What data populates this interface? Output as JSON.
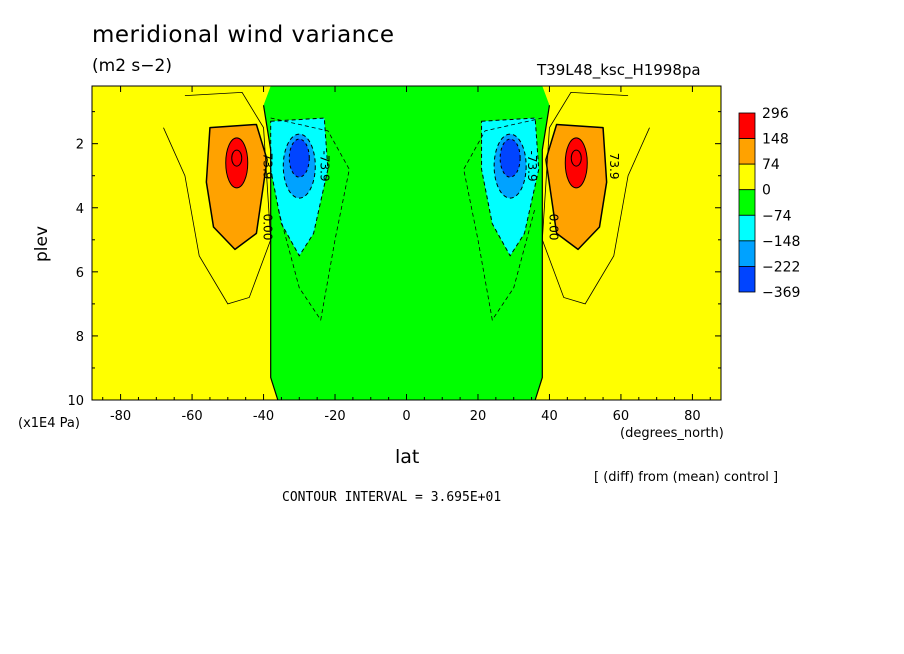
{
  "header": {
    "title": "meridional wind variance",
    "units": "(m2 s−2)",
    "run_name": "T39L48_ksc_H1998pa"
  },
  "footer": {
    "diff_note": "[ (diff) from (mean) control ]",
    "contour_interval": "CONTOUR INTERVAL = 3.695E+01"
  },
  "chart_data": {
    "type": "heatmap",
    "title": "meridional wind variance",
    "subtitle": "(m2 s−2)",
    "xlabel": "lat",
    "xunit": "(degrees_north)",
    "ylabel": "plev",
    "yunit": "(x1E4 Pa)",
    "xlim": [
      -88,
      88
    ],
    "ylim": [
      10,
      0.2
    ],
    "y_inverted": true,
    "x_ticks": [
      -80,
      -60,
      -40,
      -20,
      0,
      20,
      40,
      60,
      80
    ],
    "y_ticks": [
      2,
      4,
      6,
      8,
      10
    ],
    "legend": {
      "placement": "right",
      "levels": [
        "296",
        "148",
        "74",
        "0",
        "−74",
        "−148",
        "−222",
        "−369"
      ],
      "colors": [
        "#ff0000",
        "#ffa200",
        "#ffff00",
        "#00ff00",
        "#00ffff",
        "#00a2ff",
        "#0044ff"
      ]
    },
    "contour_labels": [
      "73.9",
      "0.00",
      "-73.9"
    ],
    "fields": [
      {
        "name": "polar positive region",
        "level": "0 to 74",
        "lat_range": [
          -88,
          -38
        ],
        "plev_range": [
          0.2,
          10
        ]
      },
      {
        "name": "polar positive region",
        "level": "0 to 74",
        "lat_range": [
          38,
          88
        ],
        "plev_range": [
          0.2,
          10
        ]
      },
      {
        "name": "equatorial negative region",
        "level": "-74 to 0",
        "lat_range": [
          -38,
          38
        ],
        "plev_range": [
          0.2,
          10
        ]
      },
      {
        "name": "SH positive maximum",
        "lat": -48,
        "plev": 2.6,
        "peak_level": "above 296"
      },
      {
        "name": "NH positive maximum",
        "lat": 48,
        "plev": 2.6,
        "peak_level": "above 296"
      },
      {
        "name": "SH negative minimum",
        "lat": -30,
        "plev": 2.5,
        "peak_level": "below -222"
      },
      {
        "name": "NH negative minimum",
        "lat": 29,
        "plev": 2.5,
        "peak_level": "below -222"
      }
    ]
  }
}
